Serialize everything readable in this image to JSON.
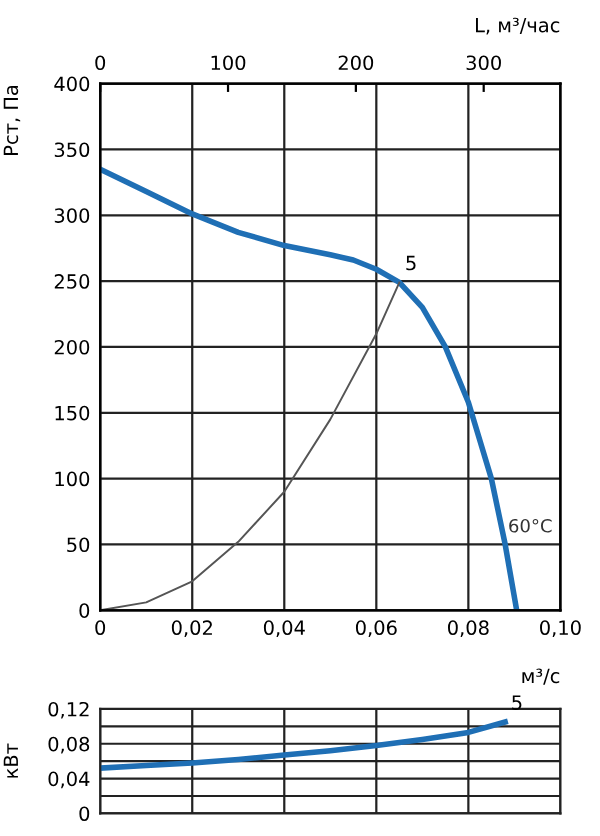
{
  "chart_data": [
    {
      "type": "line",
      "xlabel": "м³/с",
      "ylabel": "Рст, Па",
      "x2label": "L, м³/час",
      "xlim": [
        0,
        0.1
      ],
      "xticks": [
        0,
        {
          "value": 0.02,
          "label": "0,02"
        },
        {
          "value": 0.04,
          "label": "0,04"
        },
        {
          "value": 0.06,
          "label": "0,06"
        },
        {
          "value": 0.08,
          "label": "0,08"
        },
        {
          "value": 0.1,
          "label": "0,10"
        }
      ],
      "x2lim": [
        0,
        360
      ],
      "x2ticks": [
        0,
        100,
        200,
        300
      ],
      "ylim": [
        0,
        400
      ],
      "yticks": [
        0,
        50,
        100,
        150,
        200,
        250,
        300,
        350,
        400
      ],
      "grid": true,
      "legend": false,
      "series": [
        {
          "name": "60°C",
          "color": "#1f6fb5",
          "x": [
            0,
            0.01,
            0.02,
            0.03,
            0.04,
            0.05,
            0.055,
            0.06,
            0.065,
            0.07,
            0.075,
            0.08,
            0.085,
            0.088,
            0.0905
          ],
          "values": [
            335,
            318,
            301,
            287,
            277,
            270,
            266,
            259,
            249,
            230,
            200,
            158,
            100,
            50,
            0
          ]
        },
        {
          "color": "#555555",
          "x": [
            0,
            0.01,
            0.02,
            0.03,
            0.04,
            0.05,
            0.06,
            0.065
          ],
          "values": [
            0,
            6,
            22,
            52,
            90,
            145,
            210,
            249
          ]
        }
      ],
      "annotations": [
        {
          "text": "5",
          "x": 0.065,
          "y": 249
        }
      ]
    },
    {
      "type": "line",
      "ylabel": "кВт",
      "xlim": [
        0,
        0.1
      ],
      "xticks": [
        {
          "value": 0,
          "label": null
        },
        {
          "value": 0.02,
          "label": null
        },
        {
          "value": 0.04,
          "label": null
        },
        {
          "value": 0.06,
          "label": null
        },
        {
          "value": 0.08,
          "label": null
        },
        {
          "value": 0.1,
          "label": null
        }
      ],
      "ylim": [
        0,
        0.12
      ],
      "yticks": [
        0,
        {
          "value": 0.02,
          "label": null
        },
        {
          "value": 0.04,
          "label": "0,04"
        },
        {
          "value": 0.06,
          "label": null
        },
        {
          "value": 0.08,
          "label": "0,08"
        },
        {
          "value": 0.1,
          "label": null
        },
        {
          "value": 0.12,
          "label": "0,12"
        }
      ],
      "grid": true,
      "legend": false,
      "tick_labels": "y",
      "series": [
        {
          "color": "#1f6fb5",
          "x": [
            0,
            0.01,
            0.02,
            0.03,
            0.04,
            0.05,
            0.06,
            0.07,
            0.08,
            0.088
          ],
          "values": [
            0.052,
            0.055,
            0.058,
            0.062,
            0.067,
            0.072,
            0.078,
            0.085,
            0.093,
            0.105
          ]
        }
      ],
      "annotations": [
        {
          "text": "5",
          "x": 0.088,
          "y": 0.105
        }
      ]
    }
  ]
}
